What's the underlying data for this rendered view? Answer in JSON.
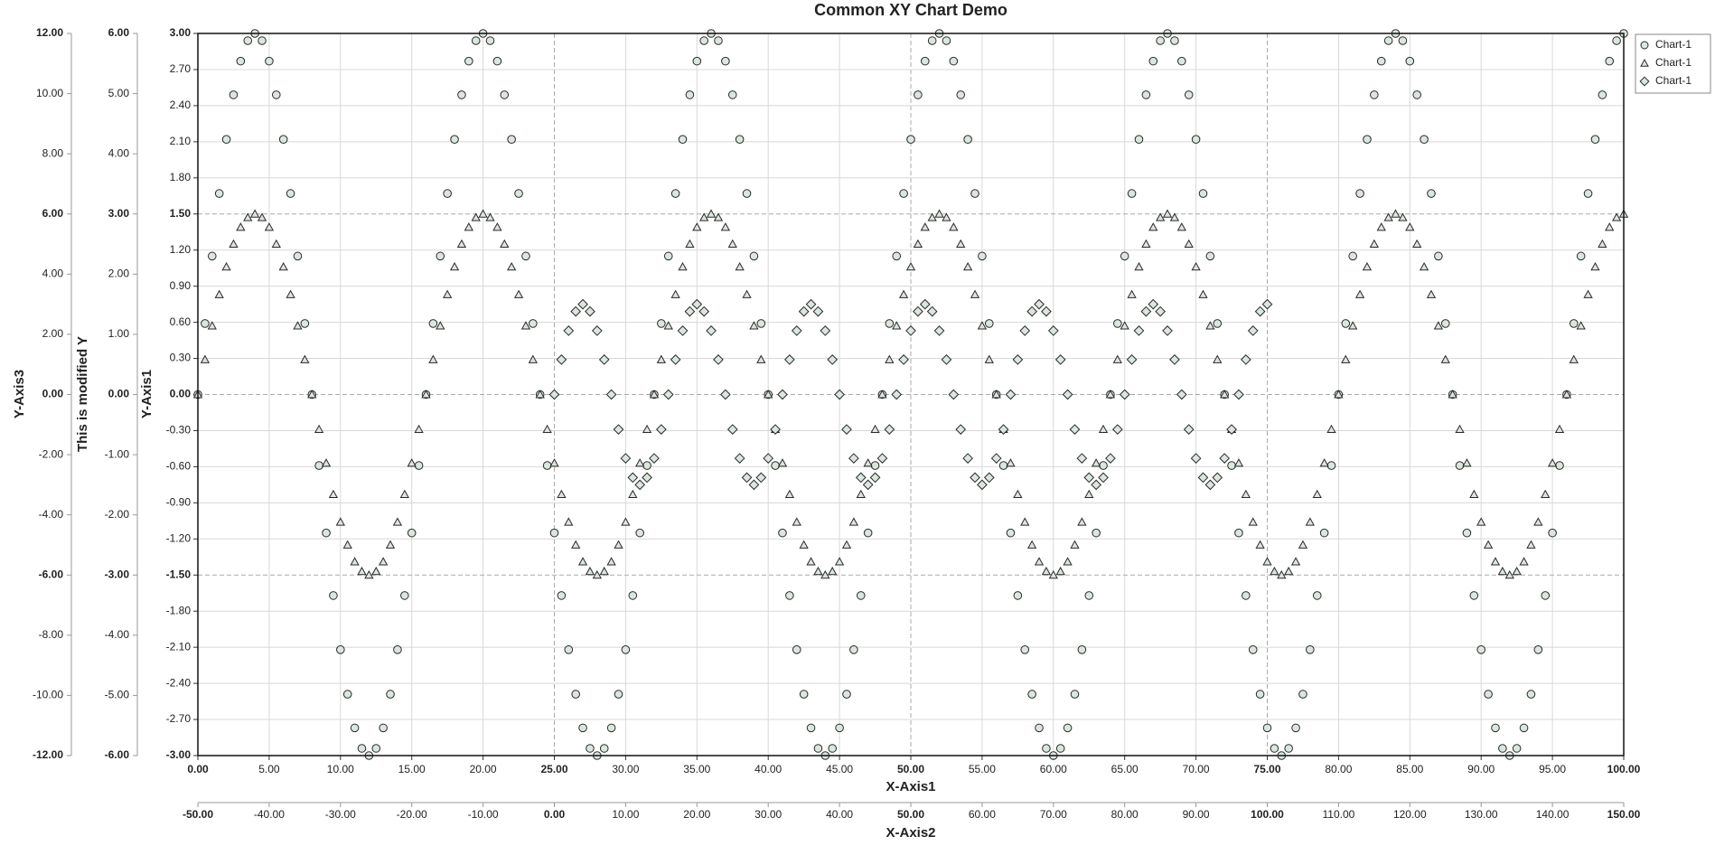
{
  "chart_data": {
    "type": "scatter",
    "title": "Common XY Chart Demo",
    "xlabel": "X-Axis1",
    "x2label": "X-Axis2",
    "ylabel": "Y-Axis1",
    "y2label": "This is modified Y",
    "y3label": "Y-Axis3",
    "grid": true,
    "xlim": [
      0,
      100
    ],
    "xticks": [
      {
        "value": 0,
        "label": "0.00"
      },
      {
        "value": 5,
        "label": "5.00"
      },
      {
        "value": 10,
        "label": "10.00"
      },
      {
        "value": 15,
        "label": "15.00"
      },
      {
        "value": 20,
        "label": "20.00"
      },
      {
        "value": 25,
        "label": "25.00"
      },
      {
        "value": 30,
        "label": "30.00"
      },
      {
        "value": 35,
        "label": "35.00"
      },
      {
        "value": 40,
        "label": "40.00"
      },
      {
        "value": 45,
        "label": "45.00"
      },
      {
        "value": 50,
        "label": "50.00"
      },
      {
        "value": 55,
        "label": "55.00"
      },
      {
        "value": 60,
        "label": "60.00"
      },
      {
        "value": 65,
        "label": "65.00"
      },
      {
        "value": 70,
        "label": "70.00"
      },
      {
        "value": 75,
        "label": "75.00"
      },
      {
        "value": 80,
        "label": "80.00"
      },
      {
        "value": 85,
        "label": "85.00"
      },
      {
        "value": 90,
        "label": "90.00"
      },
      {
        "value": 95,
        "label": "95.00"
      },
      {
        "value": 100,
        "label": "100.00"
      }
    ],
    "x2lim": [
      -50,
      150
    ],
    "x2ticks": [
      {
        "value": -50,
        "label": "-50.00"
      },
      {
        "value": -40,
        "label": "-40.00"
      },
      {
        "value": -30,
        "label": "-30.00"
      },
      {
        "value": -20,
        "label": "-20.00"
      },
      {
        "value": -10,
        "label": "-10.00"
      },
      {
        "value": 0,
        "label": "0.00"
      },
      {
        "value": 10,
        "label": "10.00"
      },
      {
        "value": 20,
        "label": "20.00"
      },
      {
        "value": 30,
        "label": "30.00"
      },
      {
        "value": 40,
        "label": "40.00"
      },
      {
        "value": 50,
        "label": "50.00"
      },
      {
        "value": 60,
        "label": "60.00"
      },
      {
        "value": 70,
        "label": "70.00"
      },
      {
        "value": 80,
        "label": "80.00"
      },
      {
        "value": 90,
        "label": "90.00"
      },
      {
        "value": 100,
        "label": "100.00"
      },
      {
        "value": 110,
        "label": "110.00"
      },
      {
        "value": 120,
        "label": "120.00"
      },
      {
        "value": 130,
        "label": "130.00"
      },
      {
        "value": 140,
        "label": "140.00"
      },
      {
        "value": 150,
        "label": "150.00"
      }
    ],
    "ylim": [
      -3,
      3
    ],
    "yticks": [
      {
        "value": 3,
        "label": "3.00"
      },
      {
        "value": 2.7,
        "label": "2.70"
      },
      {
        "value": 2.4,
        "label": "2.40"
      },
      {
        "value": 2.1,
        "label": "2.10"
      },
      {
        "value": 1.8,
        "label": "1.80"
      },
      {
        "value": 1.5,
        "label": "1.50"
      },
      {
        "value": 1.2,
        "label": "1.20"
      },
      {
        "value": 0.9,
        "label": "0.90"
      },
      {
        "value": 0.6,
        "label": "0.60"
      },
      {
        "value": 0.3,
        "label": "0.30"
      },
      {
        "value": 0,
        "label": "0.00"
      },
      {
        "value": -0.3,
        "label": "-0.30"
      },
      {
        "value": -0.6,
        "label": "-0.60"
      },
      {
        "value": -0.9,
        "label": "-0.90"
      },
      {
        "value": -1.2,
        "label": "-1.20"
      },
      {
        "value": -1.5,
        "label": "-1.50"
      },
      {
        "value": -1.8,
        "label": "-1.80"
      },
      {
        "value": -2.1,
        "label": "-2.10"
      },
      {
        "value": -2.4,
        "label": "-2.40"
      },
      {
        "value": -2.7,
        "label": "-2.70"
      },
      {
        "value": -3,
        "label": "-3.00"
      }
    ],
    "y2lim": [
      -6,
      6
    ],
    "y2ticks": [
      {
        "value": 6,
        "label": "6.00"
      },
      {
        "value": 5,
        "label": "5.00"
      },
      {
        "value": 4,
        "label": "4.00"
      },
      {
        "value": 3,
        "label": "3.00"
      },
      {
        "value": 2,
        "label": "2.00"
      },
      {
        "value": 1,
        "label": "1.00"
      },
      {
        "value": 0,
        "label": "0.00"
      },
      {
        "value": -1,
        "label": "-1.00"
      },
      {
        "value": -2,
        "label": "-2.00"
      },
      {
        "value": -3,
        "label": "-3.00"
      },
      {
        "value": -4,
        "label": "-4.00"
      },
      {
        "value": -5,
        "label": "-5.00"
      },
      {
        "value": -6,
        "label": "-6.00"
      }
    ],
    "y3lim": [
      -12,
      12
    ],
    "y3ticks": [
      {
        "value": 12,
        "label": "12.00"
      },
      {
        "value": 10,
        "label": "10.00"
      },
      {
        "value": 8,
        "label": "8.00"
      },
      {
        "value": 6,
        "label": "6.00"
      },
      {
        "value": 4,
        "label": "4.00"
      },
      {
        "value": 2,
        "label": "2.00"
      },
      {
        "value": 0,
        "label": "0.00"
      },
      {
        "value": -2,
        "label": "-2.00"
      },
      {
        "value": -4,
        "label": "-4.00"
      },
      {
        "value": -6,
        "label": "-6.00"
      },
      {
        "value": -8,
        "label": "-8.00"
      },
      {
        "value": -10,
        "label": "-10.00"
      },
      {
        "value": -12,
        "label": "-12.00"
      }
    ],
    "x": [
      0,
      0.5,
      1,
      1.5,
      2,
      2.5,
      3,
      3.5,
      4,
      4.5,
      5,
      5.5,
      6,
      6.5,
      7,
      7.5,
      8,
      8.5,
      9,
      9.5,
      10,
      10.5,
      11,
      11.5,
      12,
      12.5,
      13,
      13.5,
      14,
      14.5,
      15,
      15.5,
      16,
      16.5,
      17,
      17.5,
      18,
      18.5,
      19,
      19.5,
      20,
      20.5,
      21,
      21.5,
      22,
      22.5,
      23,
      23.5,
      24,
      24.5,
      25,
      25.5,
      26,
      26.5,
      27,
      27.5,
      28,
      28.5,
      29,
      29.5,
      30,
      30.5,
      31,
      31.5,
      32,
      32.5,
      33,
      33.5,
      34,
      34.5,
      35,
      35.5,
      36,
      36.5,
      37,
      37.5,
      38,
      38.5,
      39,
      39.5,
      40,
      40.5,
      41,
      41.5,
      42,
      42.5,
      43,
      43.5,
      44,
      44.5,
      45,
      45.5,
      46,
      46.5,
      47,
      47.5,
      48,
      48.5,
      49,
      49.5,
      50,
      50.5,
      51,
      51.5,
      52,
      52.5,
      53,
      53.5,
      54,
      54.5,
      55,
      55.5,
      56,
      56.5,
      57,
      57.5,
      58,
      58.5,
      59,
      59.5,
      60,
      60.5,
      61,
      61.5,
      62,
      62.5,
      63,
      63.5,
      64,
      64.5,
      65,
      65.5,
      66,
      66.5,
      67,
      67.5,
      68,
      68.5,
      69,
      69.5,
      70,
      70.5,
      71,
      71.5,
      72,
      72.5,
      73,
      73.5,
      74,
      74.5,
      75,
      75.5,
      76,
      76.5,
      77,
      77.5,
      78,
      78.5,
      79,
      79.5,
      80,
      80.5,
      81,
      81.5,
      82,
      82.5,
      83,
      83.5,
      84,
      84.5,
      85,
      85.5,
      86,
      86.5,
      87,
      87.5,
      88,
      88.5,
      89,
      89.5,
      90,
      90.5,
      91,
      91.5,
      92,
      92.5,
      93,
      93.5,
      94,
      94.5,
      95,
      95.5,
      96,
      96.5,
      97,
      97.5,
      98,
      98.5,
      99,
      99.5,
      100
    ],
    "series": [
      {
        "name": "Chart-1",
        "marker": "circle",
        "color": "#dbe6dc",
        "values": [
          0,
          0.59,
          1.15,
          1.67,
          2.12,
          2.49,
          2.77,
          2.94,
          3,
          2.94,
          2.77,
          2.49,
          2.12,
          1.67,
          1.15,
          0.59,
          0,
          -0.59,
          -1.15,
          -1.67,
          -2.12,
          -2.49,
          -2.77,
          -2.94,
          -3,
          -2.94,
          -2.77,
          -2.49,
          -2.12,
          -1.67,
          -1.15,
          -0.59,
          0,
          0.59,
          1.15,
          1.67,
          2.12,
          2.49,
          2.77,
          2.94,
          3,
          2.94,
          2.77,
          2.49,
          2.12,
          1.67,
          1.15,
          0.59,
          0,
          -0.59,
          -1.15,
          -1.67,
          -2.12,
          -2.49,
          -2.77,
          -2.94,
          -3,
          -2.94,
          -2.77,
          -2.49,
          -2.12,
          -1.67,
          -1.15,
          -0.59,
          0,
          0.59,
          1.15,
          1.67,
          2.12,
          2.49,
          2.77,
          2.94,
          3,
          2.94,
          2.77,
          2.49,
          2.12,
          1.67,
          1.15,
          0.59,
          0,
          -0.59,
          -1.15,
          -1.67,
          -2.12,
          -2.49,
          -2.77,
          -2.94,
          -3,
          -2.94,
          -2.77,
          -2.49,
          -2.12,
          -1.67,
          -1.15,
          -0.59,
          0,
          0.59,
          1.15,
          1.67,
          2.12,
          2.49,
          2.77,
          2.94,
          3,
          2.94,
          2.77,
          2.49,
          2.12,
          1.67,
          1.15,
          0.59,
          0,
          -0.59,
          -1.15,
          -1.67,
          -2.12,
          -2.49,
          -2.77,
          -2.94,
          -3,
          -2.94,
          -2.77,
          -2.49,
          -2.12,
          -1.67,
          -1.15,
          -0.59,
          0,
          0.59,
          1.15,
          1.67,
          2.12,
          2.49,
          2.77,
          2.94,
          3,
          2.94,
          2.77,
          2.49,
          2.12,
          1.67,
          1.15,
          0.59,
          0,
          -0.59,
          -1.15,
          -1.67,
          -2.12,
          -2.49,
          -2.77,
          -2.94,
          -3,
          -2.94,
          -2.77,
          -2.49,
          -2.12,
          -1.67,
          -1.15,
          -0.59,
          0,
          0.59,
          1.15,
          1.67,
          2.12,
          2.49,
          2.77,
          2.94,
          3,
          2.94,
          2.77,
          2.49,
          2.12,
          1.67,
          1.15,
          0.59,
          0,
          -0.59,
          -1.15,
          -1.67,
          -2.12,
          -2.49,
          -2.77,
          -2.94,
          -3,
          -2.94,
          -2.77,
          -2.49,
          -2.12,
          -1.67,
          -1.15,
          -0.59,
          0,
          0.59,
          1.15,
          1.67,
          2.12,
          2.49,
          2.77,
          2.94,
          3
        ]
      },
      {
        "name": "Chart-1",
        "marker": "triangle",
        "color": "#dbe6dc",
        "values": [
          0,
          0.29,
          0.57,
          0.83,
          1.06,
          1.25,
          1.39,
          1.47,
          1.5,
          1.47,
          1.39,
          1.25,
          1.06,
          0.83,
          0.57,
          0.29,
          0,
          -0.29,
          -0.57,
          -0.83,
          -1.06,
          -1.25,
          -1.39,
          -1.47,
          -1.5,
          -1.47,
          -1.39,
          -1.25,
          -1.06,
          -0.83,
          -0.57,
          -0.29,
          0,
          0.29,
          0.57,
          0.83,
          1.06,
          1.25,
          1.39,
          1.47,
          1.5,
          1.47,
          1.39,
          1.25,
          1.06,
          0.83,
          0.57,
          0.29,
          0,
          -0.29,
          -0.57,
          -0.83,
          -1.06,
          -1.25,
          -1.39,
          -1.47,
          -1.5,
          -1.47,
          -1.39,
          -1.25,
          -1.06,
          -0.83,
          -0.57,
          -0.29,
          0,
          0.29,
          0.57,
          0.83,
          1.06,
          1.25,
          1.39,
          1.47,
          1.5,
          1.47,
          1.39,
          1.25,
          1.06,
          0.83,
          0.57,
          0.29,
          0,
          -0.29,
          -0.57,
          -0.83,
          -1.06,
          -1.25,
          -1.39,
          -1.47,
          -1.5,
          -1.47,
          -1.39,
          -1.25,
          -1.06,
          -0.83,
          -0.57,
          -0.29,
          0,
          0.29,
          0.57,
          0.83,
          1.06,
          1.25,
          1.39,
          1.47,
          1.5,
          1.47,
          1.39,
          1.25,
          1.06,
          0.83,
          0.57,
          0.29,
          0,
          -0.29,
          -0.57,
          -0.83,
          -1.06,
          -1.25,
          -1.39,
          -1.47,
          -1.5,
          -1.47,
          -1.39,
          -1.25,
          -1.06,
          -0.83,
          -0.57,
          -0.29,
          0,
          0.29,
          0.57,
          0.83,
          1.06,
          1.25,
          1.39,
          1.47,
          1.5,
          1.47,
          1.39,
          1.25,
          1.06,
          0.83,
          0.57,
          0.29,
          0,
          -0.29,
          -0.57,
          -0.83,
          -1.06,
          -1.25,
          -1.39,
          -1.47,
          -1.5,
          -1.47,
          -1.39,
          -1.25,
          -1.06,
          -0.83,
          -0.57,
          -0.29,
          0,
          0.29,
          0.57,
          0.83,
          1.06,
          1.25,
          1.39,
          1.47,
          1.5,
          1.47,
          1.39,
          1.25,
          1.06,
          0.83,
          0.57,
          0.29,
          0,
          -0.29,
          -0.57,
          -0.83,
          -1.06,
          -1.25,
          -1.39,
          -1.47,
          -1.5,
          -1.47,
          -1.39,
          -1.25,
          -1.06,
          -0.83,
          -0.57,
          -0.29,
          0,
          0.29,
          0.57,
          0.83,
          1.06,
          1.25,
          1.39,
          1.47,
          1.5
        ]
      },
      {
        "name": "Chart-1",
        "marker": "diamond",
        "color": "#dbe6dc",
        "x": [
          25,
          25.5,
          26,
          26.5,
          27,
          27.5,
          28,
          28.5,
          29,
          29.5,
          30,
          30.5,
          31,
          31.5,
          32,
          32.5,
          33,
          33.5,
          34,
          34.5,
          35,
          35.5,
          36,
          36.5,
          37,
          37.5,
          38,
          38.5,
          39,
          39.5,
          40,
          40.5,
          41,
          41.5,
          42,
          42.5,
          43,
          43.5,
          44,
          44.5,
          45,
          45.5,
          46,
          46.5,
          47,
          47.5,
          48,
          48.5,
          49,
          49.5,
          50,
          50.5,
          51,
          51.5,
          52,
          52.5,
          53,
          53.5,
          54,
          54.5,
          55,
          55.5,
          56,
          56.5,
          57,
          57.5,
          58,
          58.5,
          59,
          59.5,
          60,
          60.5,
          61,
          61.5,
          62,
          62.5,
          63,
          63.5,
          64,
          64.5,
          65,
          65.5,
          66,
          66.5,
          67,
          67.5,
          68,
          68.5,
          69,
          69.5,
          70,
          70.5,
          71,
          71.5,
          72,
          72.5,
          73,
          73.5,
          74,
          74.5,
          75
        ],
        "values": [
          0,
          0.29,
          0.53,
          0.69,
          0.75,
          0.69,
          0.53,
          0.29,
          0,
          -0.29,
          -0.53,
          -0.69,
          -0.75,
          -0.69,
          -0.53,
          -0.29,
          0,
          0.29,
          0.53,
          0.69,
          0.75,
          0.69,
          0.53,
          0.29,
          0,
          -0.29,
          -0.53,
          -0.69,
          -0.75,
          -0.69,
          -0.53,
          -0.29,
          0,
          0.29,
          0.53,
          0.69,
          0.75,
          0.69,
          0.53,
          0.29,
          0,
          -0.29,
          -0.53,
          -0.69,
          -0.75,
          -0.69,
          -0.53,
          -0.29,
          0,
          0.29,
          0.53,
          0.69,
          0.75,
          0.69,
          0.53,
          0.29,
          0,
          -0.29,
          -0.53,
          -0.69,
          -0.75,
          -0.69,
          -0.53,
          -0.29,
          0,
          0.29,
          0.53,
          0.69,
          0.75,
          0.69,
          0.53,
          0.29,
          0,
          -0.29,
          -0.53,
          -0.69,
          -0.75,
          -0.69,
          -0.53,
          -0.29,
          0,
          0.29,
          0.53,
          0.69,
          0.75,
          0.69,
          0.53,
          0.29,
          0,
          -0.29,
          -0.53,
          -0.69,
          -0.75,
          -0.69,
          -0.53,
          -0.29,
          0,
          0.29,
          0.53,
          0.69,
          0.75
        ]
      }
    ]
  }
}
